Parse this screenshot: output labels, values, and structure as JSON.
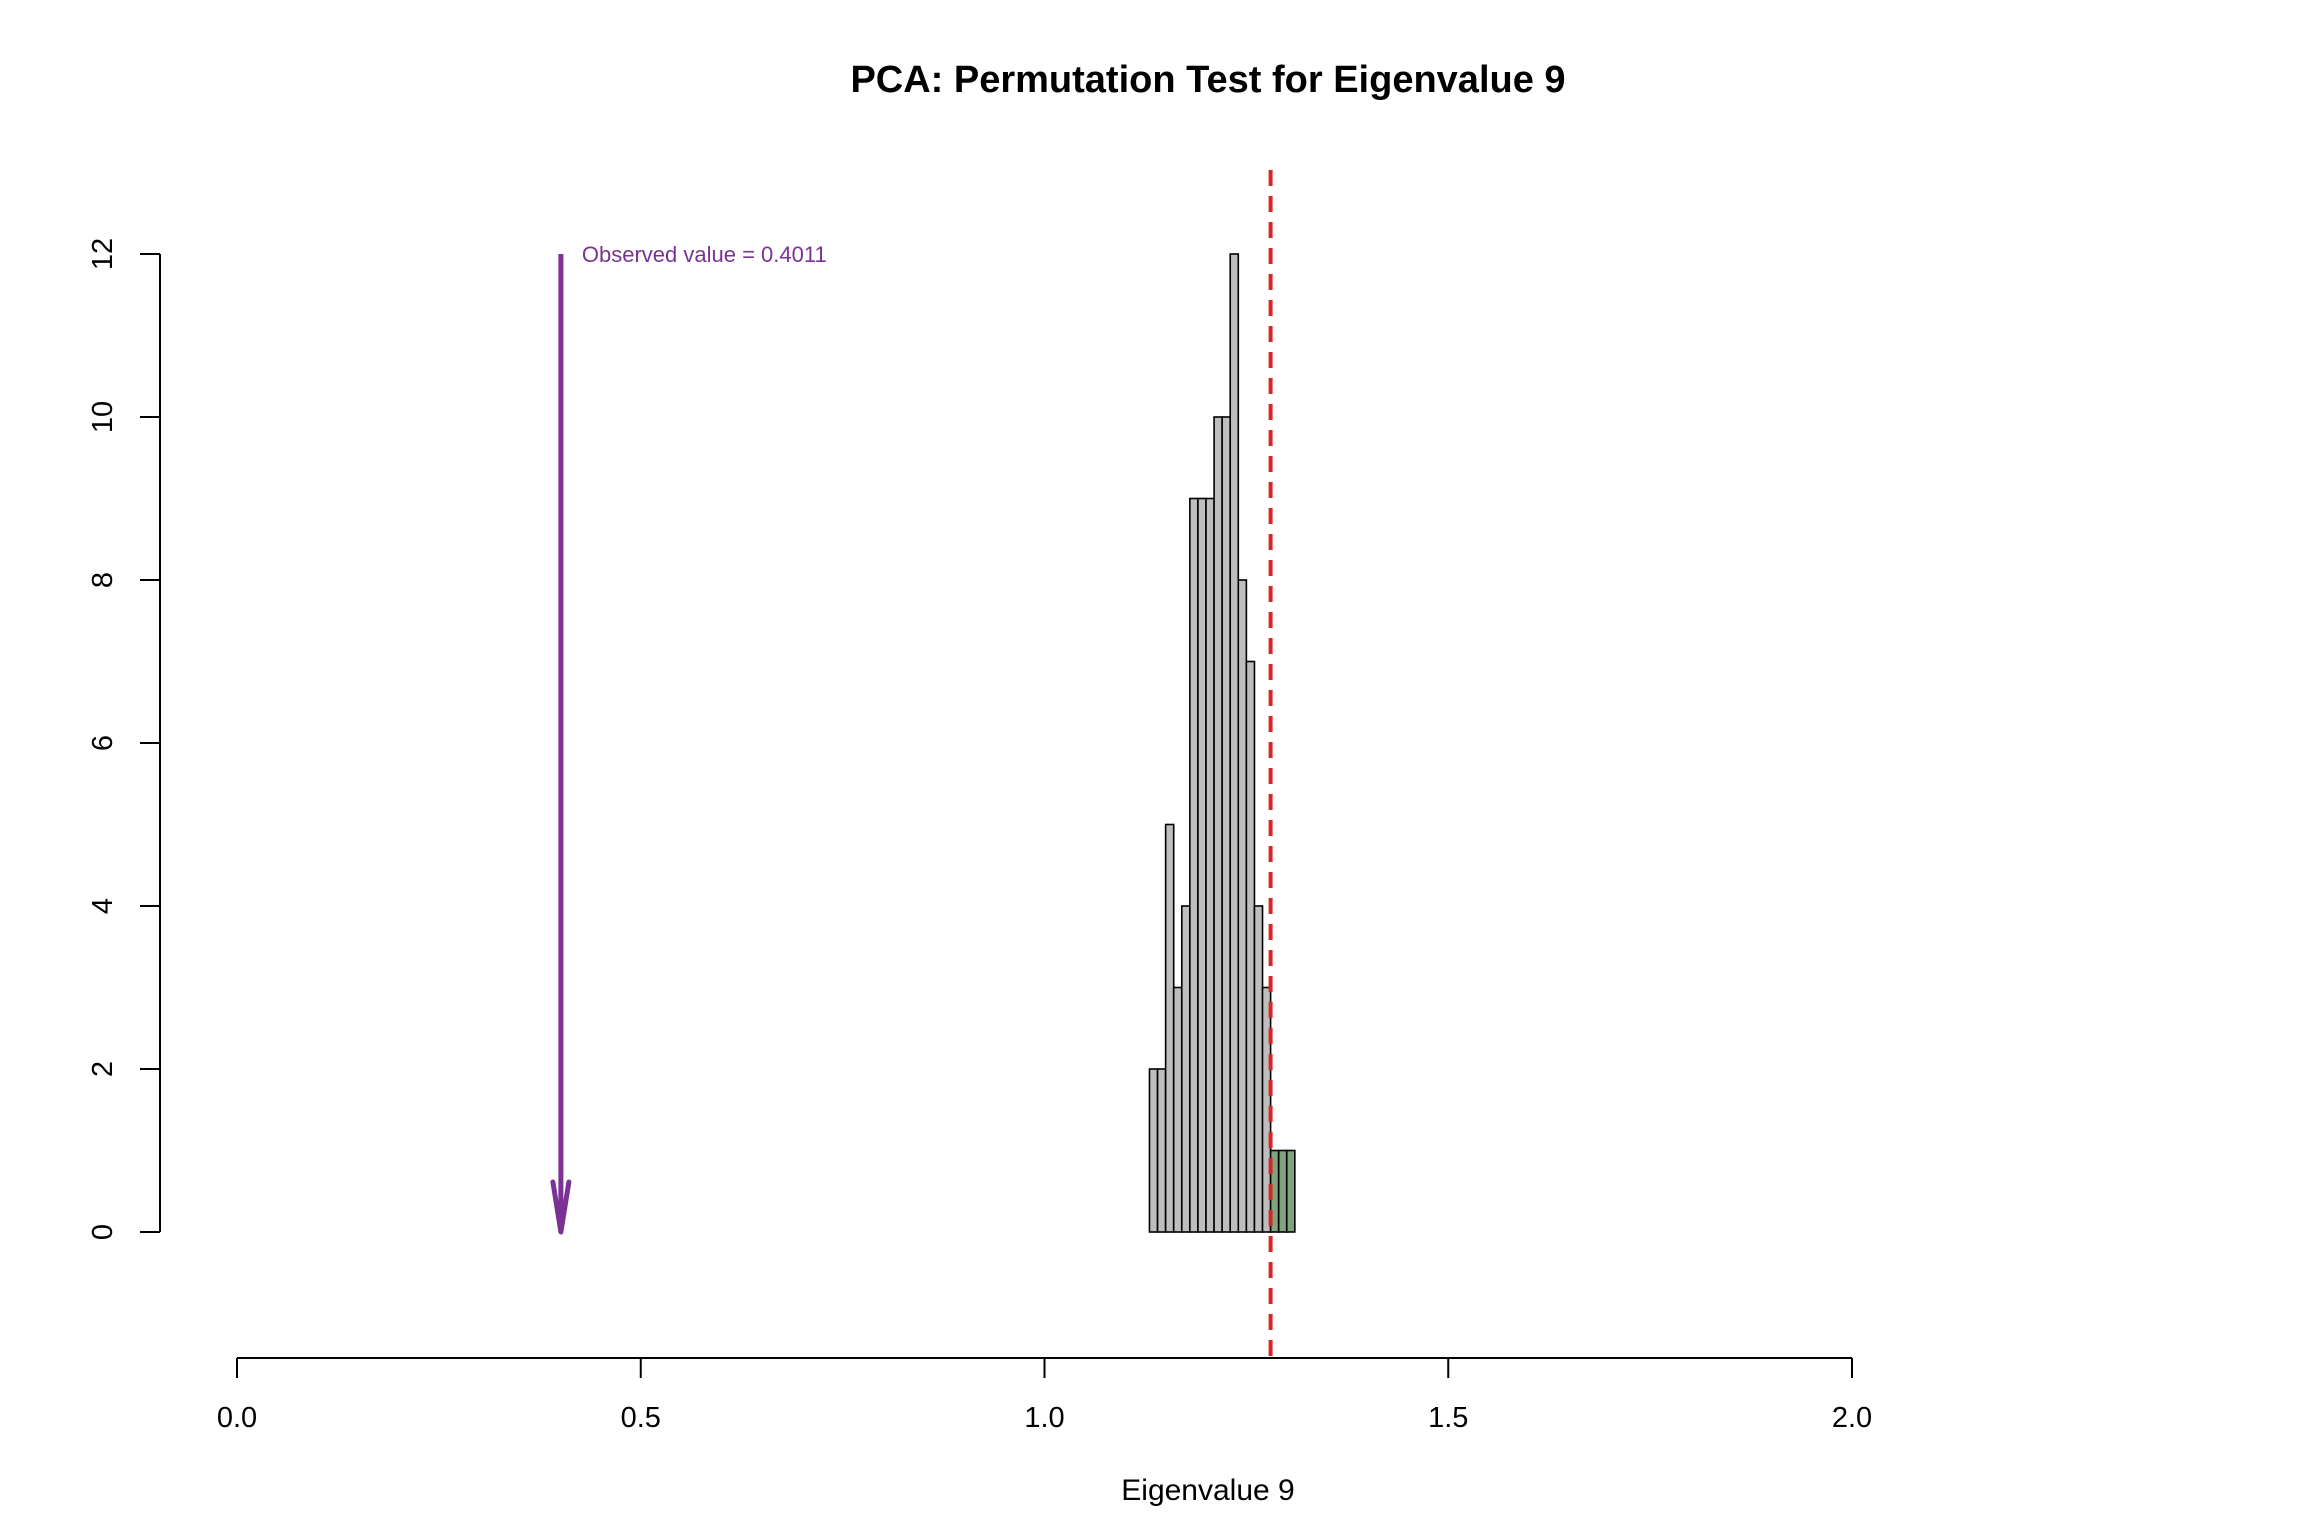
{
  "chart_data": {
    "type": "bar",
    "title": "PCA: Permutation Test for Eigenvalue 9",
    "xlabel": "Eigenvalue 9",
    "ylabel": "",
    "xlim": [
      0,
      2
    ],
    "ylim": [
      0,
      12
    ],
    "x_ticks": [
      "0.0",
      "0.5",
      "1.0",
      "1.5",
      "2.0"
    ],
    "y_ticks": [
      "0",
      "2",
      "4",
      "6",
      "8",
      "10",
      "12"
    ],
    "bin_width": 0.01,
    "bins": [
      {
        "x0": 1.13,
        "x1": 1.14,
        "count": 2
      },
      {
        "x0": 1.14,
        "x1": 1.15,
        "count": 2
      },
      {
        "x0": 1.15,
        "x1": 1.16,
        "count": 5
      },
      {
        "x0": 1.16,
        "x1": 1.17,
        "count": 3
      },
      {
        "x0": 1.17,
        "x1": 1.18,
        "count": 4
      },
      {
        "x0": 1.18,
        "x1": 1.19,
        "count": 9
      },
      {
        "x0": 1.19,
        "x1": 1.2,
        "count": 9
      },
      {
        "x0": 1.2,
        "x1": 1.21,
        "count": 9
      },
      {
        "x0": 1.21,
        "x1": 1.22,
        "count": 10
      },
      {
        "x0": 1.22,
        "x1": 1.23,
        "count": 10
      },
      {
        "x0": 1.23,
        "x1": 1.24,
        "count": 12
      },
      {
        "x0": 1.24,
        "x1": 1.25,
        "count": 8
      },
      {
        "x0": 1.25,
        "x1": 1.26,
        "count": 7
      },
      {
        "x0": 1.26,
        "x1": 1.27,
        "count": 4
      },
      {
        "x0": 1.27,
        "x1": 1.28,
        "count": 3
      },
      {
        "x0": 1.28,
        "x1": 1.29,
        "count": 1
      },
      {
        "x0": 1.29,
        "x1": 1.3,
        "count": 1
      },
      {
        "x0": 1.3,
        "x1": 1.31,
        "count": 1
      }
    ],
    "critical_value": 1.28,
    "observed_value": 0.4011,
    "observed_label": "Observed value = 0.4011",
    "grid": false,
    "colors": {
      "bar_fill": "#bebebe",
      "bar_tail_fill": "#7fa57f",
      "bar_stroke": "#000000",
      "critical_line": "#d62728",
      "observed_arrow": "#7b3294"
    }
  }
}
